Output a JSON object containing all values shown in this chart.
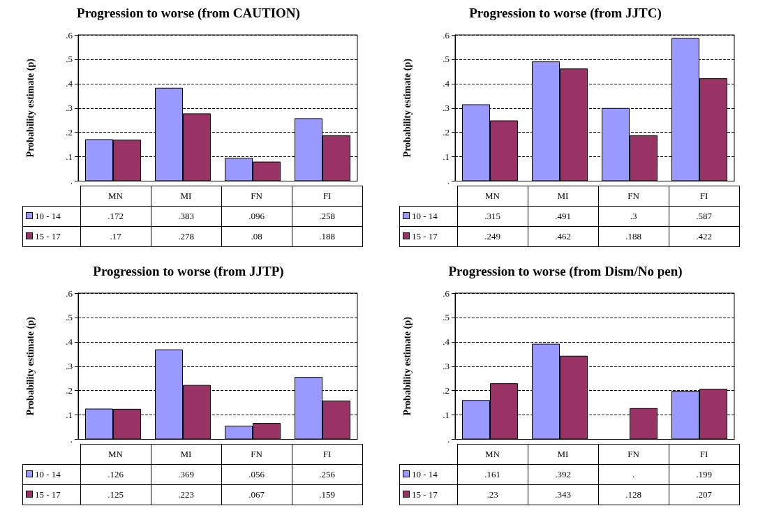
{
  "chart_data": [
    {
      "type": "bar",
      "title": "Progression to worse (from CAUTION)",
      "ylabel": "Probability estimate (p)",
      "categories": [
        "MN",
        "MI",
        "FN",
        "FI"
      ],
      "series": [
        {
          "name": "10 - 14",
          "color": "#9999ff",
          "values": [
            0.172,
            0.383,
            0.096,
            0.258
          ],
          "value_labels": [
            ".172",
            ".383",
            ".096",
            ".258"
          ]
        },
        {
          "name": "15 - 17",
          "color": "#993366",
          "values": [
            0.17,
            0.278,
            0.08,
            0.188
          ],
          "value_labels": [
            ".17",
            ".278",
            ".08",
            ".188"
          ]
        }
      ],
      "ylim": [
        0,
        0.6
      ],
      "yticks": [
        {
          "value": 0,
          "label": "."
        },
        {
          "value": 0.1,
          "label": ".1"
        },
        {
          "value": 0.2,
          "label": ".2"
        },
        {
          "value": 0.3,
          "label": ".3"
        },
        {
          "value": 0.4,
          "label": ".4"
        },
        {
          "value": 0.5,
          "label": ".5"
        },
        {
          "value": 0.6,
          "label": ".6"
        }
      ],
      "grid": "y",
      "legend": "bottom left"
    },
    {
      "type": "bar",
      "title": "Progression to worse (from JJTC)",
      "ylabel": "Probability estimate (p)",
      "categories": [
        "MN",
        "MI",
        "FN",
        "FI"
      ],
      "series": [
        {
          "name": "10 - 14",
          "color": "#9999ff",
          "values": [
            0.315,
            0.491,
            0.3,
            0.587
          ],
          "value_labels": [
            ".315",
            ".491",
            ".3",
            ".587"
          ]
        },
        {
          "name": "15 - 17",
          "color": "#993366",
          "values": [
            0.249,
            0.462,
            0.188,
            0.422
          ],
          "value_labels": [
            ".249",
            ".462",
            ".188",
            ".422"
          ]
        }
      ],
      "ylim": [
        0,
        0.6
      ],
      "yticks": [
        {
          "value": 0,
          "label": "."
        },
        {
          "value": 0.1,
          "label": ".1"
        },
        {
          "value": 0.2,
          "label": ".2"
        },
        {
          "value": 0.3,
          "label": ".3"
        },
        {
          "value": 0.4,
          "label": ".4"
        },
        {
          "value": 0.5,
          "label": ".5"
        },
        {
          "value": 0.6,
          "label": ".6"
        }
      ],
      "grid": "y",
      "legend": "bottom left"
    },
    {
      "type": "bar",
      "title": "Progression to worse (from JJTP)",
      "ylabel": "Probability estimate (p)",
      "categories": [
        "MN",
        "MI",
        "FN",
        "FI"
      ],
      "series": [
        {
          "name": "10 - 14",
          "color": "#9999ff",
          "values": [
            0.126,
            0.369,
            0.056,
            0.256
          ],
          "value_labels": [
            ".126",
            ".369",
            ".056",
            ".256"
          ]
        },
        {
          "name": "15 - 17",
          "color": "#993366",
          "values": [
            0.125,
            0.223,
            0.067,
            0.159
          ],
          "value_labels": [
            ".125",
            ".223",
            ".067",
            ".159"
          ]
        }
      ],
      "ylim": [
        0,
        0.6
      ],
      "yticks": [
        {
          "value": 0,
          "label": "."
        },
        {
          "value": 0.1,
          "label": ".1"
        },
        {
          "value": 0.2,
          "label": ".2"
        },
        {
          "value": 0.3,
          "label": ".3"
        },
        {
          "value": 0.4,
          "label": ".4"
        },
        {
          "value": 0.5,
          "label": ".5"
        },
        {
          "value": 0.6,
          "label": ".6"
        }
      ],
      "grid": "y",
      "legend": "bottom left"
    },
    {
      "type": "bar",
      "title": "Progression to worse (from Dism/No pen)",
      "ylabel": "Probability estimate (p)",
      "categories": [
        "MN",
        "MI",
        "FN",
        "FI"
      ],
      "series": [
        {
          "name": "10 - 14",
          "color": "#9999ff",
          "values": [
            0.161,
            0.392,
            null,
            0.199
          ],
          "value_labels": [
            ".161",
            ".392",
            ".",
            ".199"
          ]
        },
        {
          "name": "15 - 17",
          "color": "#993366",
          "values": [
            0.23,
            0.343,
            0.128,
            0.207
          ],
          "value_labels": [
            ".23",
            ".343",
            ".128",
            ".207"
          ]
        }
      ],
      "ylim": [
        0,
        0.6
      ],
      "yticks": [
        {
          "value": 0,
          "label": "."
        },
        {
          "value": 0.1,
          "label": ".1"
        },
        {
          "value": 0.2,
          "label": ".2"
        },
        {
          "value": 0.3,
          "label": ".3"
        },
        {
          "value": 0.4,
          "label": ".4"
        },
        {
          "value": 0.5,
          "label": ".5"
        },
        {
          "value": 0.6,
          "label": ".6"
        }
      ],
      "grid": "y",
      "legend": "bottom left"
    }
  ]
}
